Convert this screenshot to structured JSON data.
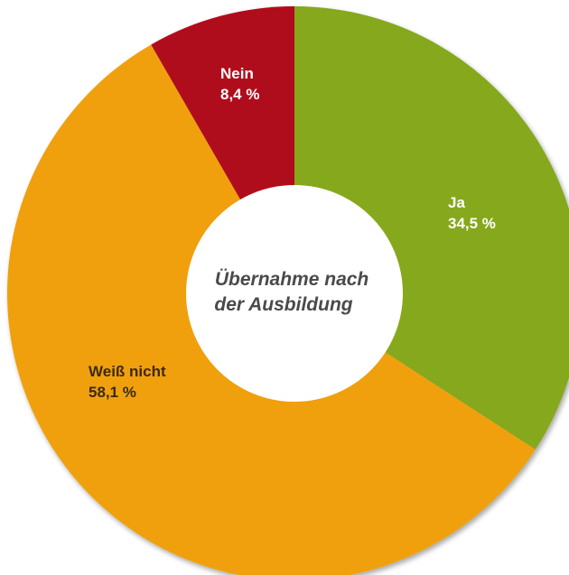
{
  "chart_data": {
    "type": "pie",
    "variant": "donut",
    "center_title": [
      "Übernahme nach",
      "der Ausbildung"
    ],
    "slices": [
      {
        "label": "Ja",
        "value": 34.5,
        "display": "34,5 %",
        "color": "#86a81e",
        "label_color": "#ffffff"
      },
      {
        "label": "Weiß nicht",
        "value": 58.1,
        "display": "58,1 %",
        "color": "#f0a00a",
        "label_color": "#3a2a10"
      },
      {
        "label": "Nein",
        "value": 8.4,
        "display": "8,4 %",
        "color": "#b0081f",
        "label_color": "#ffffff"
      }
    ],
    "start": "12 o'clock",
    "direction": "clockwise",
    "legend": "none"
  }
}
